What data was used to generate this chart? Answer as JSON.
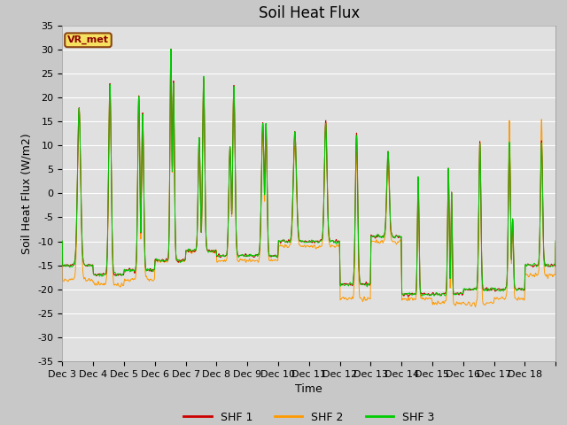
{
  "title": "Soil Heat Flux",
  "ylabel": "Soil Heat Flux (W/m2)",
  "xlabel": "Time",
  "ylim": [
    -35,
    35
  ],
  "yticks": [
    -35,
    -30,
    -25,
    -20,
    -15,
    -10,
    -5,
    0,
    5,
    10,
    15,
    20,
    25,
    30,
    35
  ],
  "colors": {
    "SHF 1": "#cc0000",
    "SHF 2": "#ff9900",
    "SHF 3": "#00cc00"
  },
  "legend_labels": [
    "SHF 1",
    "SHF 2",
    "SHF 3"
  ],
  "watermark": "VR_met",
  "fig_bg_color": "#c8c8c8",
  "plot_bg_color": "#e0e0e0",
  "n_days": 16,
  "start_day": 3,
  "points_per_day": 144,
  "title_fontsize": 12,
  "axis_label_fontsize": 9,
  "tick_fontsize": 8
}
